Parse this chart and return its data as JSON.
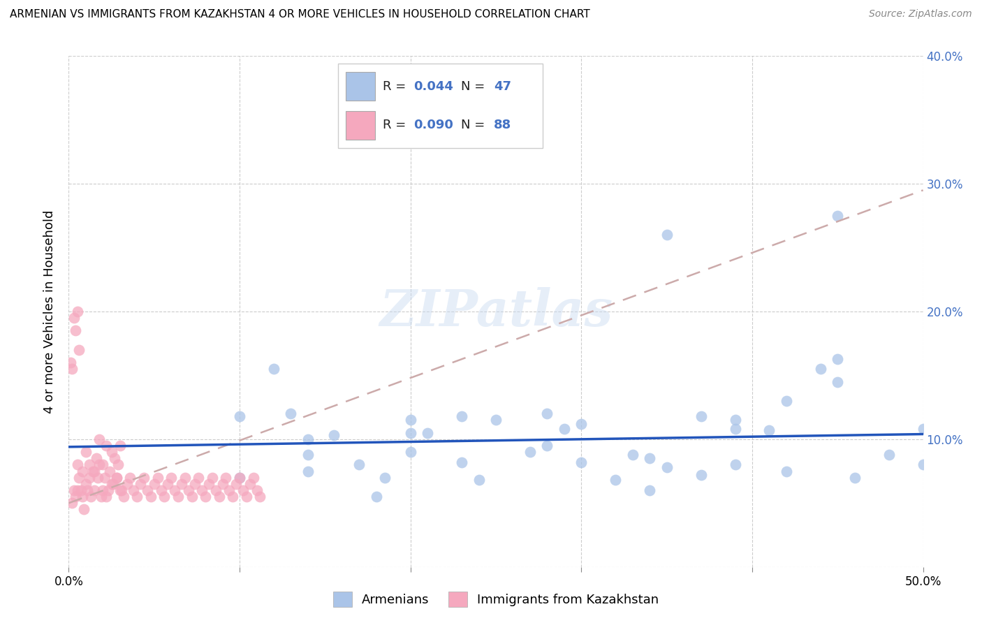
{
  "title": "ARMENIAN VS IMMIGRANTS FROM KAZAKHSTAN 4 OR MORE VEHICLES IN HOUSEHOLD CORRELATION CHART",
  "source": "Source: ZipAtlas.com",
  "ylabel": "4 or more Vehicles in Household",
  "xlabel": "",
  "xlim": [
    0.0,
    0.5
  ],
  "ylim": [
    0.0,
    0.4
  ],
  "xticks": [
    0.0,
    0.1,
    0.2,
    0.3,
    0.4,
    0.5
  ],
  "yticks": [
    0.0,
    0.1,
    0.2,
    0.3,
    0.4
  ],
  "xticklabels": [
    "0.0%",
    "",
    "",
    "",
    "",
    "50.0%"
  ],
  "yticklabels_right": [
    "",
    "10.0%",
    "20.0%",
    "30.0%",
    "40.0%"
  ],
  "armenian_color": "#aac4e8",
  "kazakh_color": "#f5a8be",
  "armenian_line_color": "#2255bb",
  "kazakh_line_color": "#cc7799",
  "r_armenian": 0.044,
  "n_armenian": 47,
  "r_kazakh": 0.09,
  "n_kazakh": 88,
  "legend_label_armenian": "Armenians",
  "legend_label_kazakh": "Immigrants from Kazakhstan",
  "watermark": "ZIPatlas",
  "armenian_x": [
    0.14,
    0.14,
    0.14,
    0.2,
    0.2,
    0.23,
    0.25,
    0.28,
    0.28,
    0.3,
    0.32,
    0.34,
    0.34,
    0.35,
    0.37,
    0.39,
    0.39,
    0.42,
    0.45,
    0.45,
    0.45,
    0.5,
    0.5,
    0.1,
    0.1,
    0.12,
    0.13,
    0.18,
    0.2,
    0.23,
    0.3,
    0.33,
    0.35,
    0.39,
    0.41,
    0.44,
    0.46,
    0.48,
    0.155,
    0.17,
    0.185,
    0.21,
    0.24,
    0.27,
    0.29,
    0.37,
    0.42
  ],
  "armenian_y": [
    0.1,
    0.088,
    0.075,
    0.115,
    0.105,
    0.118,
    0.115,
    0.12,
    0.095,
    0.112,
    0.068,
    0.06,
    0.085,
    0.078,
    0.118,
    0.115,
    0.108,
    0.13,
    0.163,
    0.145,
    0.275,
    0.108,
    0.08,
    0.118,
    0.07,
    0.155,
    0.12,
    0.055,
    0.09,
    0.082,
    0.082,
    0.088,
    0.26,
    0.08,
    0.107,
    0.155,
    0.07,
    0.088,
    0.103,
    0.08,
    0.07,
    0.105,
    0.068,
    0.09,
    0.108,
    0.072,
    0.075
  ],
  "kazakh_x": [
    0.005,
    0.008,
    0.01,
    0.012,
    0.015,
    0.018,
    0.02,
    0.022,
    0.025,
    0.028,
    0.03,
    0.032,
    0.034,
    0.036,
    0.038,
    0.04,
    0.042,
    0.044,
    0.046,
    0.048,
    0.05,
    0.052,
    0.054,
    0.056,
    0.058,
    0.06,
    0.062,
    0.064,
    0.066,
    0.068,
    0.07,
    0.072,
    0.074,
    0.076,
    0.078,
    0.08,
    0.082,
    0.084,
    0.086,
    0.088,
    0.09,
    0.092,
    0.094,
    0.096,
    0.098,
    0.1,
    0.102,
    0.104,
    0.106,
    0.108,
    0.11,
    0.112,
    0.002,
    0.003,
    0.004,
    0.005,
    0.006,
    0.007,
    0.008,
    0.009,
    0.01,
    0.011,
    0.012,
    0.013,
    0.014,
    0.015,
    0.016,
    0.017,
    0.018,
    0.019,
    0.02,
    0.021,
    0.022,
    0.023,
    0.024,
    0.025,
    0.026,
    0.027,
    0.028,
    0.029,
    0.03,
    0.031,
    0.001,
    0.002,
    0.003,
    0.004,
    0.005,
    0.006
  ],
  "kazakh_y": [
    0.06,
    0.055,
    0.065,
    0.07,
    0.075,
    0.08,
    0.06,
    0.055,
    0.065,
    0.07,
    0.06,
    0.055,
    0.065,
    0.07,
    0.06,
    0.055,
    0.065,
    0.07,
    0.06,
    0.055,
    0.065,
    0.07,
    0.06,
    0.055,
    0.065,
    0.07,
    0.06,
    0.055,
    0.065,
    0.07,
    0.06,
    0.055,
    0.065,
    0.07,
    0.06,
    0.055,
    0.065,
    0.07,
    0.06,
    0.055,
    0.065,
    0.07,
    0.06,
    0.055,
    0.065,
    0.07,
    0.06,
    0.055,
    0.065,
    0.07,
    0.06,
    0.055,
    0.05,
    0.06,
    0.055,
    0.08,
    0.07,
    0.06,
    0.075,
    0.045,
    0.09,
    0.06,
    0.08,
    0.055,
    0.075,
    0.06,
    0.085,
    0.07,
    0.1,
    0.055,
    0.08,
    0.07,
    0.095,
    0.06,
    0.075,
    0.09,
    0.065,
    0.085,
    0.07,
    0.08,
    0.095,
    0.06,
    0.16,
    0.155,
    0.195,
    0.185,
    0.2,
    0.17
  ],
  "armenian_line_intercept": 0.094,
  "armenian_line_slope": 0.02,
  "kazakh_line_intercept": 0.05,
  "kazakh_line_slope": 0.49
}
